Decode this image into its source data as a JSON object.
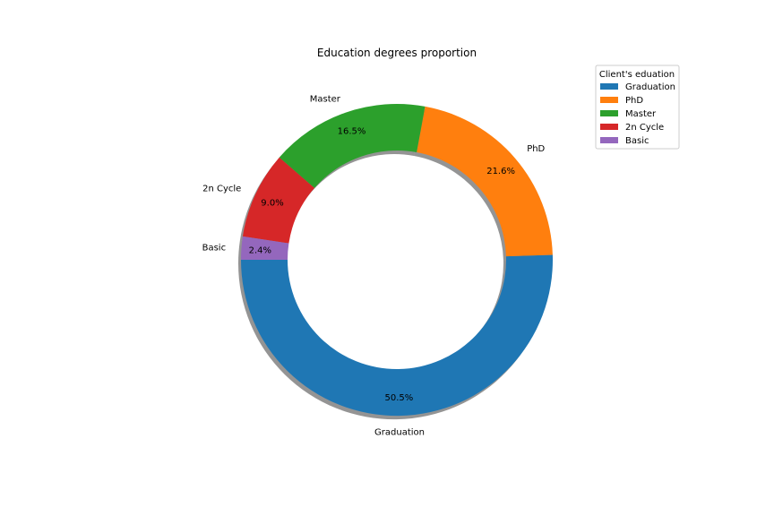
{
  "chart_data": {
    "type": "pie",
    "style": "donut",
    "title": "Education degrees proportion",
    "legend_title": "Client's eduation",
    "legend_position": "top-right",
    "shadow": true,
    "start_angle_deg": 180,
    "direction": "counterclockwise",
    "categories": [
      "Graduation",
      "PhD",
      "Master",
      "2n Cycle",
      "Basic"
    ],
    "values": [
      50.5,
      21.6,
      16.5,
      9.0,
      2.4
    ],
    "value_labels": [
      "50.5%",
      "21.6%",
      "16.5%",
      "9.0%",
      "2.4%"
    ],
    "colors": [
      "#1f77b4",
      "#ff7f0e",
      "#2ca02c",
      "#d62728",
      "#9467bd"
    ]
  }
}
